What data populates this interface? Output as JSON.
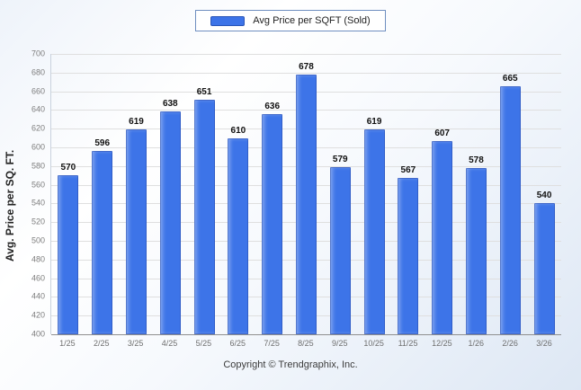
{
  "legend": {
    "label": "Avg Price per SQFT (Sold)",
    "swatch_color": "#3d74e8"
  },
  "chart_data": {
    "type": "bar",
    "title": "",
    "xlabel": "",
    "ylabel": "Avg. Price per SQ. FT.",
    "ylim": [
      400,
      700
    ],
    "ytick_step": 20,
    "grid": true,
    "legend_position": "top",
    "series_name": "Avg Price per SQFT (Sold)",
    "bar_color": "#3d74e8",
    "categories": [
      "1/25",
      "2/25",
      "3/25",
      "4/25",
      "5/25",
      "6/25",
      "7/25",
      "8/25",
      "9/25",
      "10/25",
      "11/25",
      "12/25",
      "1/26",
      "2/26",
      "3/26"
    ],
    "values": [
      570,
      596,
      619,
      638,
      651,
      610,
      636,
      678,
      579,
      619,
      567,
      607,
      578,
      665,
      540
    ]
  },
  "footer": {
    "copyright": "Copyright © Trendgraphix, Inc."
  }
}
